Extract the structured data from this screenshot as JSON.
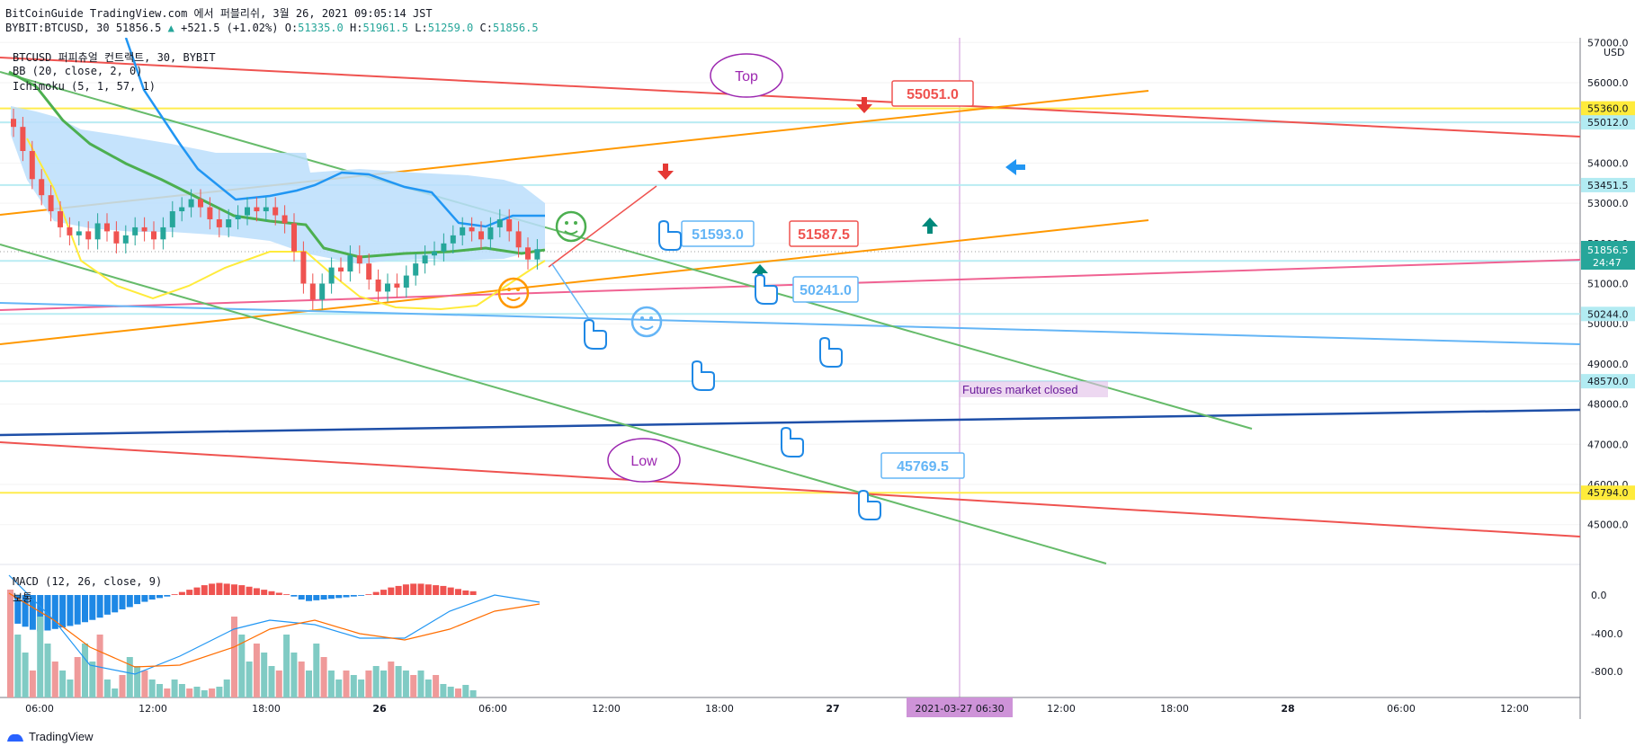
{
  "header": {
    "line1": "BitCoinGuide TradingView.com 에서 퍼블리쉬, 3월 26, 2021 09:05:14 JST",
    "symbol": "BYBIT:BTCUSD, 30",
    "last": "51856.5",
    "change": "+521.5 (+1.02%)",
    "o_label": "O:",
    "o": "51335.0",
    "h_label": "H:",
    "h": "51961.5",
    "l_label": "L:",
    "l": "51259.0",
    "c_label": "C:",
    "c": "51856.5"
  },
  "legend": {
    "title": "BTCUSD 퍼피츄얼 컨트랙트, 30, BYBIT",
    "bb": "BB (20, close, 2, 0)",
    "ichimoku": "Ichimoku (5, 1, 57, 1)",
    "macd": "MACD (12, 26, close, 9)",
    "macd_sub": "보통"
  },
  "footer": {
    "brand": "TradingView"
  },
  "price_axis": {
    "currency": "USD",
    "ticks": [
      "57000.0",
      "56000.0",
      "55000.0",
      "54000.0",
      "53000.0",
      "52000.0",
      "51000.0",
      "50000.0",
      "49000.0",
      "48000.0",
      "47000.0",
      "46000.0",
      "45000.0"
    ],
    "labels": [
      {
        "text": "55360.0",
        "value": 55360,
        "bg": "#ffeb3b",
        "fg": "#131722"
      },
      {
        "text": "55012.0",
        "value": 55012,
        "bg": "#b2ebf2",
        "fg": "#131722"
      },
      {
        "text": "53451.5",
        "value": 53451.5,
        "bg": "#b2ebf2",
        "fg": "#131722"
      },
      {
        "text": "51566.0",
        "value": 51566,
        "bg": "#b2ebf2",
        "fg": "#131722"
      },
      {
        "text": "50244.0",
        "value": 50244,
        "bg": "#b2ebf2",
        "fg": "#131722"
      },
      {
        "text": "48570.0",
        "value": 48570,
        "bg": "#b2ebf2",
        "fg": "#131722"
      },
      {
        "text": "45794.0",
        "value": 45794,
        "bg": "#ffeb3b",
        "fg": "#131722"
      }
    ],
    "last_price": {
      "text": "51856.5",
      "countdown": "24:47",
      "bg": "#26a69a",
      "fg": "#ffffff"
    }
  },
  "macd_axis": {
    "ticks": [
      "0.0",
      "-400.0",
      "-800.0"
    ]
  },
  "time_axis": {
    "ticks": [
      "06:00",
      "12:00",
      "18:00",
      "26",
      "06:00",
      "12:00",
      "18:00",
      "27",
      "06:30",
      "12:00",
      "18:00",
      "28",
      "06:00",
      "12:00"
    ],
    "crosshair_label": "2021-03-27   06:30"
  },
  "annotations": {
    "top_bubble": "Top",
    "low_bubble": "Low",
    "callouts": [
      "55051.0",
      "51593.0",
      "51587.5",
      "50241.0",
      "45769.5"
    ],
    "closed_note": "Futures market closed"
  },
  "colors": {
    "up": "#26a69a",
    "down": "#ef5350",
    "cloud": "#bbdefb",
    "bb_yellow": "#ffeb3b",
    "ichi_blue": "#2196f3",
    "ichi_green": "#4caf50"
  },
  "chart_data": [
    {
      "type": "candlestick",
      "title": "BTCUSD 퍼피츄얼 컨트랙트, 30, BYBIT",
      "ylim": [
        44500,
        57300
      ],
      "hlines": [
        55360,
        55012,
        53451.5,
        51566,
        50244,
        48570,
        45794
      ],
      "close_series": [
        54900,
        54300,
        53600,
        53200,
        52800,
        52400,
        52200,
        52300,
        52100,
        52500,
        52300,
        52000,
        52200,
        52400,
        52300,
        52100,
        52400,
        52800,
        52900,
        53100,
        52900,
        52600,
        52400,
        52600,
        52700,
        52900,
        52800,
        52900,
        52700,
        52500,
        51800,
        51000,
        50600,
        51000,
        51400,
        51300,
        51700,
        51500,
        51100,
        50800,
        51000,
        50900,
        51200,
        51500,
        51700,
        51800,
        52000,
        52200,
        52400,
        52300,
        52100,
        52400,
        52600,
        52300,
        51900,
        51600,
        51857
      ]
    },
    {
      "type": "bar",
      "title": "MACD (12, 26, close, 9)",
      "ylim": [
        -1000,
        350
      ],
      "histogram": [
        -320,
        -380,
        -420,
        -460,
        -480,
        -470,
        -450,
        -430,
        -410,
        -390,
        -360,
        -330,
        -300,
        -260,
        -230,
        -190,
        -160,
        -120,
        -90,
        -60,
        -40,
        -20,
        10,
        40,
        70,
        100,
        130,
        150,
        160,
        150,
        140,
        130,
        110,
        90,
        70,
        50,
        30,
        10,
        -20,
        -60,
        -80,
        -70,
        -60,
        -50,
        -40,
        -30,
        -20,
        -10,
        10,
        40,
        70,
        100,
        120,
        140,
        150,
        150,
        140,
        130,
        120,
        100,
        80,
        60,
        50
      ]
    }
  ]
}
